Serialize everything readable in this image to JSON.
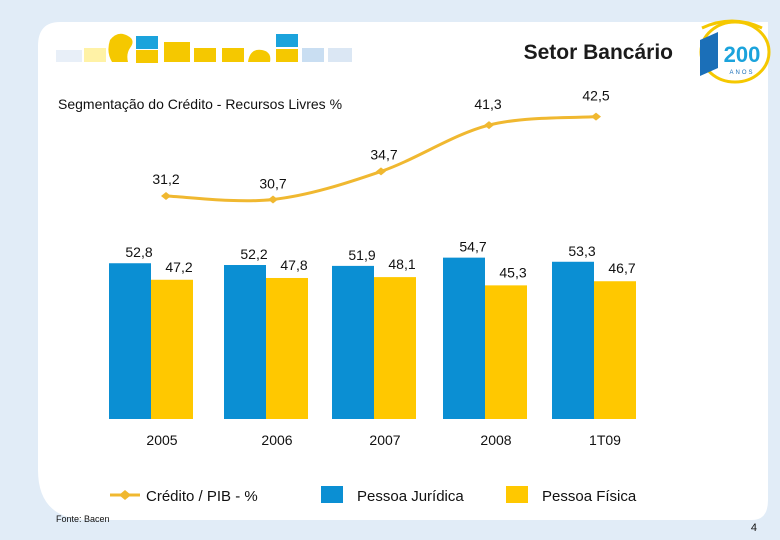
{
  "header": {
    "title": "Setor Bancário",
    "badge_number": "200",
    "badge_caption": "ANOS",
    "subtitle": "Segmentação do Crédito - Recursos Livres %"
  },
  "footer": {
    "source": "Fonte: Bacen",
    "page_number": "4"
  },
  "colors": {
    "pessoa_juridica": "#0b8fd3",
    "pessoa_fisica": "#ffc800",
    "credito_pib": "#f0b830",
    "logo_blue": "#1ba3dc",
    "logo_yellow": "#f5c800",
    "frame_blue": "#e1ecf7"
  },
  "chart_data": {
    "type": "bar",
    "categories": [
      "2005",
      "2006",
      "2007",
      "2008",
      "1T09"
    ],
    "series": [
      {
        "name": "Pessoa Jurídica",
        "kind": "bar",
        "values": [
          52.8,
          52.2,
          51.9,
          54.7,
          53.3
        ],
        "labels": [
          "52,8",
          "52,2",
          "51,9",
          "54,7",
          "53,3"
        ]
      },
      {
        "name": "Pessoa Física",
        "kind": "bar",
        "values": [
          47.2,
          47.8,
          48.1,
          45.3,
          46.7
        ],
        "labels": [
          "47,2",
          "47,8",
          "48,1",
          "45,3",
          "46,7"
        ]
      },
      {
        "name": "Crédito / PIB - %",
        "kind": "line",
        "values": [
          31.2,
          30.7,
          34.7,
          41.3,
          42.5
        ],
        "labels": [
          "31,2",
          "30,7",
          "34,7",
          "41,3",
          "42,5"
        ]
      }
    ],
    "legend_position": "bottom",
    "grid": false
  }
}
